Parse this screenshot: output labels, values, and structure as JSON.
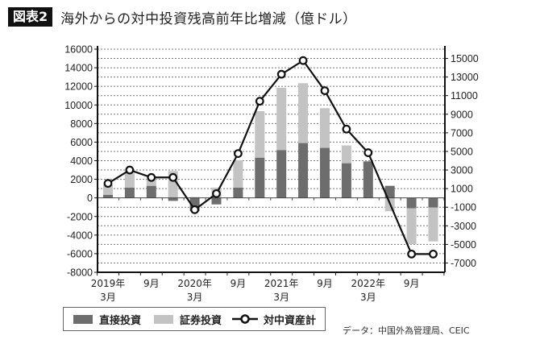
{
  "title": {
    "badge": "図表2",
    "text": "海外からの対中投資残高前年比増減（億ドル）"
  },
  "source": "データ：中国外為管理局、CEIC",
  "colors": {
    "direct": "#6d6d6d",
    "securities": "#c3c3c4",
    "line": "#111111"
  },
  "chart_data": {
    "type": "bar+line",
    "stacked": true,
    "categories": [
      "2019-03",
      "2019-06",
      "2019-09",
      "2019-12",
      "2020-03",
      "2020-06",
      "2020-09",
      "2020-12",
      "2021-03",
      "2021-06",
      "2021-09",
      "2021-12",
      "2022-03",
      "2022-06",
      "2022-09",
      "2022-12"
    ],
    "x_tick_labels": [
      {
        "index": 0,
        "line1": "2019年",
        "line2": "3月"
      },
      {
        "index": 2,
        "line1": "9月",
        "line2": ""
      },
      {
        "index": 4,
        "line1": "2020年",
        "line2": "3月"
      },
      {
        "index": 6,
        "line1": "9月",
        "line2": ""
      },
      {
        "index": 8,
        "line1": "2021年",
        "line2": "3月"
      },
      {
        "index": 10,
        "line1": "9月",
        "line2": ""
      },
      {
        "index": 12,
        "line1": "2022年",
        "line2": "3月"
      },
      {
        "index": 14,
        "line1": "9月",
        "line2": ""
      }
    ],
    "series": [
      {
        "name": "直接投資",
        "kind": "bar",
        "axis": "left",
        "values": [
          320,
          1100,
          1300,
          -320,
          -1420,
          -700,
          1100,
          4330,
          5150,
          5900,
          5380,
          3730,
          3930,
          1300,
          -1130,
          -1040
        ]
      },
      {
        "name": "証券投資",
        "kind": "bar",
        "axis": "left",
        "values": [
          1100,
          1590,
          750,
          2890,
          100,
          1100,
          2950,
          5000,
          6700,
          6440,
          4270,
          1910,
          0,
          -1440,
          -3840,
          -3640
        ]
      },
      {
        "name": "対中資産計",
        "kind": "line",
        "axis": "right",
        "values": [
          1560,
          3000,
          2200,
          2200,
          -1270,
          460,
          4770,
          10400,
          13300,
          14770,
          11530,
          7400,
          4860,
          null,
          -6040,
          -6040
        ]
      }
    ],
    "left_axis": {
      "range": [
        -8000,
        16000
      ],
      "ticks": [
        -8000,
        -6000,
        -4000,
        -2000,
        0,
        2000,
        4000,
        6000,
        8000,
        10000,
        12000,
        14000,
        16000
      ]
    },
    "right_axis": {
      "range": [
        -8000,
        16000
      ],
      "ticks": [
        -7000,
        -5000,
        -3000,
        -1000,
        1000,
        3000,
        5000,
        7000,
        9000,
        11000,
        13000,
        15000
      ]
    },
    "grid": "horizontal dotted every 1000",
    "legend": "bottom-left"
  }
}
